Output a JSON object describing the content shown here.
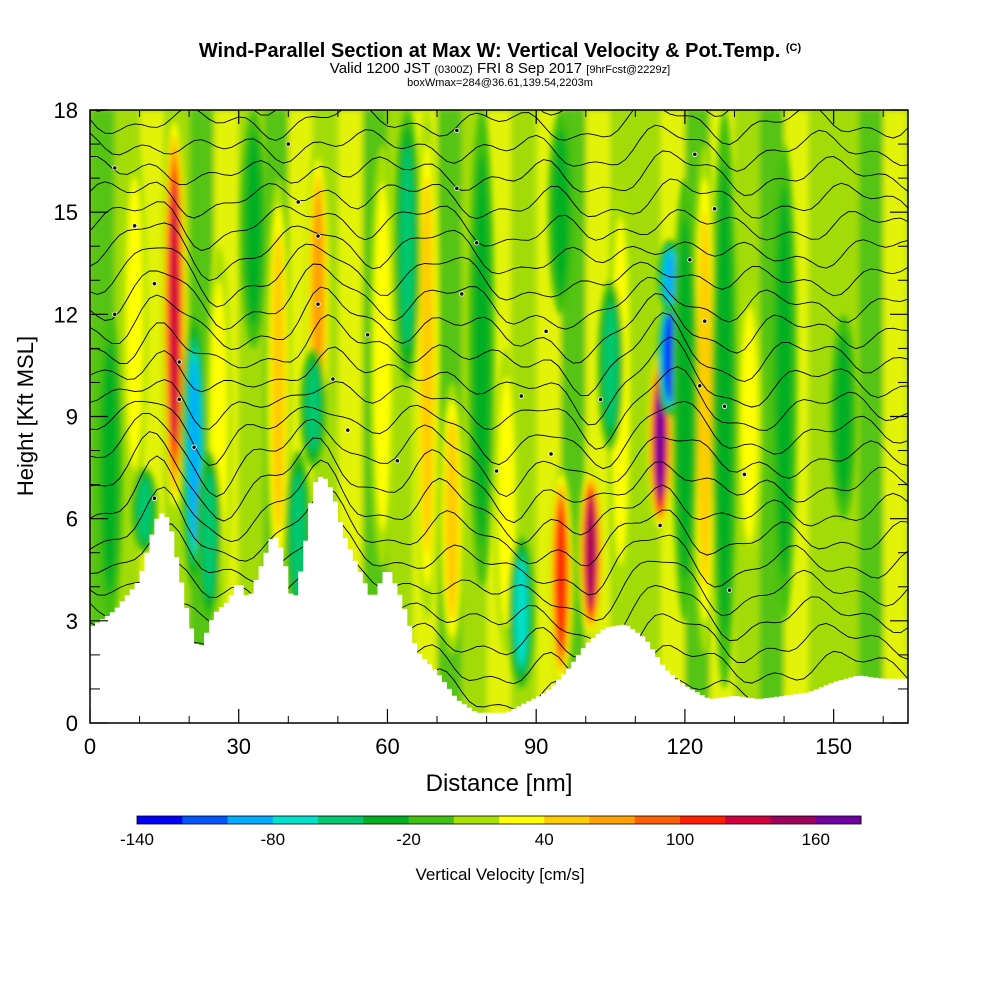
{
  "chart_data": {
    "type": "heatmap",
    "title": "Wind-Parallel Section at Max W: Vertical Velocity & Pot.Temp.",
    "title_mark": "(C)",
    "subtitle_parts": [
      "Valid 1200 JST",
      "(0300Z)",
      "FRI 8 Sep 2017",
      "[9hrFcst@2229z]"
    ],
    "subtitle2": "boxWmax=284@36.61,139.54,2203m",
    "xlabel": "Distance [nm]",
    "ylabel": "Height [Kft MSL]",
    "xlim": [
      0,
      165
    ],
    "ylim": [
      0,
      18
    ],
    "xticks": [
      0,
      30,
      60,
      90,
      120,
      150
    ],
    "yticks": [
      0,
      3,
      6,
      9,
      12,
      15,
      18
    ],
    "colorbar": {
      "label": "Vertical Velocity [cm/s]",
      "range": [
        -140,
        180
      ],
      "tick_values": [
        -140,
        -80,
        -20,
        40,
        100,
        160
      ],
      "tick_labels": [
        "-140",
        "-80",
        "-20",
        "40",
        "100",
        "160"
      ],
      "colors": [
        "#0000ff",
        "#0055ff",
        "#00aaff",
        "#00e0cc",
        "#00c870",
        "#00b020",
        "#40c010",
        "#a8e000",
        "#ffff00",
        "#ffcc00",
        "#ffa000",
        "#ff6000",
        "#ff2000",
        "#d00040",
        "#a00060",
        "#7000a0"
      ]
    },
    "terrain_kft": [
      [
        0,
        2.8
      ],
      [
        5,
        3.3
      ],
      [
        10,
        4.2
      ],
      [
        13,
        5.8
      ],
      [
        14,
        6.2
      ],
      [
        16,
        6.0
      ],
      [
        18,
        4.5
      ],
      [
        20,
        3.0
      ],
      [
        22,
        2.1
      ],
      [
        25,
        3.2
      ],
      [
        28,
        3.6
      ],
      [
        30,
        4.2
      ],
      [
        32,
        3.6
      ],
      [
        35,
        4.8
      ],
      [
        37,
        5.6
      ],
      [
        39,
        5.0
      ],
      [
        41,
        3.4
      ],
      [
        43,
        4.8
      ],
      [
        45,
        7.0
      ],
      [
        47,
        7.3
      ],
      [
        49,
        6.8
      ],
      [
        51,
        5.6
      ],
      [
        54,
        4.6
      ],
      [
        57,
        3.6
      ],
      [
        60,
        4.6
      ],
      [
        63,
        3.6
      ],
      [
        66,
        2.1
      ],
      [
        70,
        1.5
      ],
      [
        74,
        0.7
      ],
      [
        78,
        0.3
      ],
      [
        84,
        0.3
      ],
      [
        88,
        0.6
      ],
      [
        92,
        0.9
      ],
      [
        96,
        1.5
      ],
      [
        100,
        2.3
      ],
      [
        104,
        2.8
      ],
      [
        108,
        2.9
      ],
      [
        112,
        2.5
      ],
      [
        116,
        1.6
      ],
      [
        120,
        1.1
      ],
      [
        125,
        0.7
      ],
      [
        130,
        0.8
      ],
      [
        135,
        0.7
      ],
      [
        140,
        0.8
      ],
      [
        145,
        0.9
      ],
      [
        150,
        1.2
      ],
      [
        155,
        1.4
      ],
      [
        160,
        1.3
      ],
      [
        165,
        1.3
      ]
    ],
    "streaks": [
      {
        "x": 17,
        "ybot": 6.0,
        "ytop": 18,
        "w": 145
      },
      {
        "x": 26,
        "ybot": 3.0,
        "ytop": 14,
        "w": 40
      },
      {
        "x": 38,
        "ybot": 4.0,
        "ytop": 16,
        "w": 50
      },
      {
        "x": 46,
        "ybot": 8.0,
        "ytop": 17,
        "w": 70
      },
      {
        "x": 59,
        "ybot": 4.5,
        "ytop": 17,
        "w": 45
      },
      {
        "x": 68,
        "ybot": 3.0,
        "ytop": 18,
        "w": 60
      },
      {
        "x": 73,
        "ybot": 2.0,
        "ytop": 10,
        "w": 50
      },
      {
        "x": 84,
        "ybot": 2.0,
        "ytop": 11,
        "w": 40
      },
      {
        "x": 95,
        "ybot": 1.0,
        "ytop": 7.5,
        "w": 110
      },
      {
        "x": 101,
        "ybot": 2.5,
        "ytop": 7.5,
        "w": 165
      },
      {
        "x": 107,
        "ybot": 3.5,
        "ytop": 16,
        "w": 45
      },
      {
        "x": 115,
        "ybot": 5.6,
        "ytop": 11,
        "w": 175
      },
      {
        "x": 124,
        "ybot": 2.0,
        "ytop": 17,
        "w": 50
      },
      {
        "x": 133,
        "ybot": 4.5,
        "ytop": 13,
        "w": 45
      },
      {
        "x": 9,
        "ybot": 6.5,
        "ytop": 17,
        "w": 30
      },
      {
        "x": 21,
        "ybot": 4.0,
        "ytop": 12,
        "w": -90
      },
      {
        "x": 24,
        "ybot": 3.0,
        "ytop": 8,
        "w": -60
      },
      {
        "x": 45,
        "ybot": 7.5,
        "ytop": 11,
        "w": -65
      },
      {
        "x": 42,
        "ybot": 3.0,
        "ytop": 8,
        "w": -50
      },
      {
        "x": 64,
        "ybot": 10.0,
        "ytop": 18,
        "w": -50
      },
      {
        "x": 79,
        "ybot": 4.0,
        "ytop": 18,
        "w": -40
      },
      {
        "x": 87,
        "ybot": 1.0,
        "ytop": 5.5,
        "w": -75
      },
      {
        "x": 105,
        "ybot": 8.0,
        "ytop": 13,
        "w": -60
      },
      {
        "x": 117,
        "ybot": 9.0,
        "ytop": 12.5,
        "w": -150
      },
      {
        "x": 117,
        "ybot": 12.0,
        "ytop": 14.2,
        "w": -95
      },
      {
        "x": 120,
        "ybot": 3.0,
        "ytop": 16,
        "w": -45
      },
      {
        "x": 128,
        "ybot": 1.0,
        "ytop": 18,
        "w": -40
      },
      {
        "x": 140,
        "ybot": 3.0,
        "ytop": 17,
        "w": -35
      },
      {
        "x": 152,
        "ybot": 6.0,
        "ytop": 12,
        "w": -40
      },
      {
        "x": 4,
        "ybot": 3.0,
        "ytop": 12,
        "w": -30
      },
      {
        "x": 11,
        "ybot": 5.0,
        "ytop": 7.5,
        "w": -60
      },
      {
        "x": 33,
        "ybot": 11.0,
        "ytop": 18,
        "w": -40
      },
      {
        "x": 95,
        "ybot": 12.0,
        "ytop": 18,
        "w": -35
      }
    ],
    "contour_labels": [
      {
        "x": 5,
        "y": 16.3
      },
      {
        "x": 9,
        "y": 14.6
      },
      {
        "x": 13,
        "y": 12.9
      },
      {
        "x": 5,
        "y": 12.0
      },
      {
        "x": 18,
        "y": 10.6
      },
      {
        "x": 18,
        "y": 9.5
      },
      {
        "x": 21,
        "y": 8.1
      },
      {
        "x": 13,
        "y": 6.6
      },
      {
        "x": 40,
        "y": 17.0
      },
      {
        "x": 42,
        "y": 15.3
      },
      {
        "x": 46,
        "y": 14.3
      },
      {
        "x": 46,
        "y": 12.3
      },
      {
        "x": 49,
        "y": 10.1
      },
      {
        "x": 52,
        "y": 8.6
      },
      {
        "x": 56,
        "y": 11.4
      },
      {
        "x": 62,
        "y": 7.7
      },
      {
        "x": 74,
        "y": 17.4
      },
      {
        "x": 74,
        "y": 15.7
      },
      {
        "x": 78,
        "y": 14.1
      },
      {
        "x": 75,
        "y": 12.6
      },
      {
        "x": 82,
        "y": 7.4
      },
      {
        "x": 87,
        "y": 9.6
      },
      {
        "x": 92,
        "y": 11.5
      },
      {
        "x": 93,
        "y": 7.9
      },
      {
        "x": 103,
        "y": 9.5
      },
      {
        "x": 115,
        "y": 5.8
      },
      {
        "x": 122,
        "y": 16.7
      },
      {
        "x": 126,
        "y": 15.1
      },
      {
        "x": 121,
        "y": 13.6
      },
      {
        "x": 124,
        "y": 11.8
      },
      {
        "x": 123,
        "y": 9.9
      },
      {
        "x": 128,
        "y": 9.3
      },
      {
        "x": 132,
        "y": 7.3
      },
      {
        "x": 129,
        "y": 3.9
      }
    ]
  }
}
